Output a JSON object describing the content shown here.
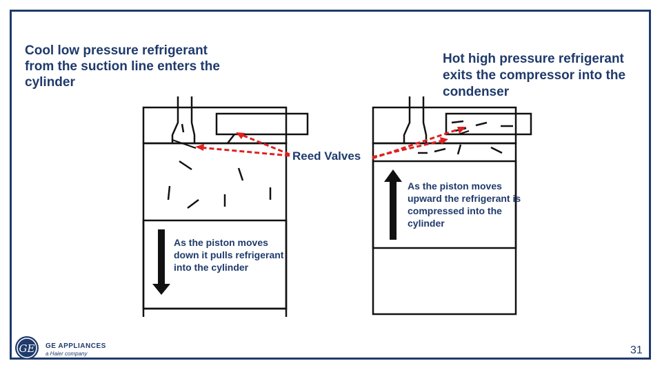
{
  "left_title": "Cool low pressure refrigerant from the suction line enters the cylinder",
  "right_title": "Hot high pressure refrigerant exits the compressor into the condenser",
  "reed_label": "Reed Valves",
  "left_note": "As the piston moves down it pulls refrigerant into the cylinder",
  "right_note": "As the piston moves upward the refrigerant is compressed into the cylinder",
  "brand": {
    "name": "GE APPLIANCES",
    "tagline": "a Haier company",
    "logo_text": "GE"
  },
  "page_number": "31",
  "colors": {
    "accent": "#1f3a6b",
    "arrow": "#e02020",
    "ink": "#111111"
  }
}
